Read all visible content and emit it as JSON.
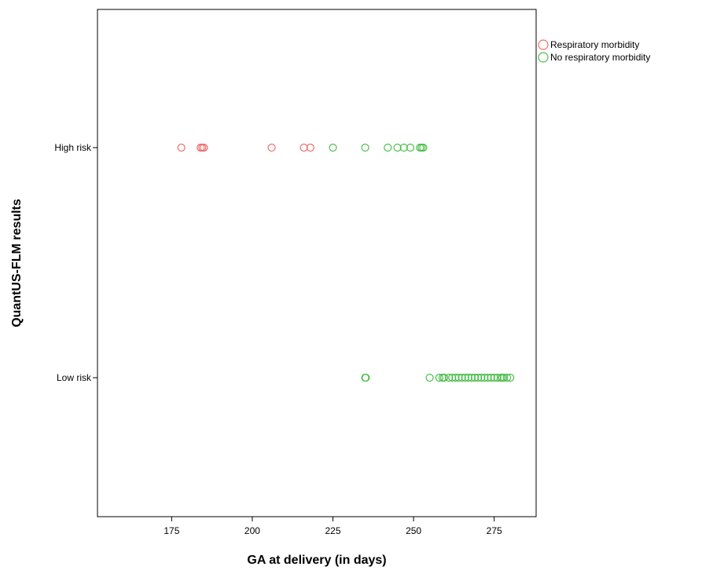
{
  "chart_data": {
    "type": "scatter",
    "title": "",
    "xlabel": "GA at delivery (in days)",
    "ylabel": "QuantUS-FLM results",
    "xlim": [
      152,
      288
    ],
    "x_ticks": [
      175,
      200,
      225,
      250,
      275
    ],
    "categories": [
      "High risk",
      "Low risk"
    ],
    "grid": false,
    "legend_position": "top-right",
    "series": [
      {
        "name": "Respiratory morbidity",
        "color": "#f26b6b",
        "points": [
          {
            "x": 178,
            "y": "High risk"
          },
          {
            "x": 184,
            "y": "High risk"
          },
          {
            "x": 184.5,
            "y": "High risk"
          },
          {
            "x": 185,
            "y": "High risk"
          },
          {
            "x": 206,
            "y": "High risk"
          },
          {
            "x": 216,
            "y": "High risk"
          },
          {
            "x": 218,
            "y": "High risk"
          }
        ]
      },
      {
        "name": "No respiratory morbidity",
        "color": "#4cbf4c",
        "points": [
          {
            "x": 225,
            "y": "High risk"
          },
          {
            "x": 235,
            "y": "High risk"
          },
          {
            "x": 242,
            "y": "High risk"
          },
          {
            "x": 245,
            "y": "High risk"
          },
          {
            "x": 247,
            "y": "High risk"
          },
          {
            "x": 249,
            "y": "High risk"
          },
          {
            "x": 252,
            "y": "High risk"
          },
          {
            "x": 252.5,
            "y": "High risk"
          },
          {
            "x": 253,
            "y": "High risk"
          },
          {
            "x": 235,
            "y": "Low risk"
          },
          {
            "x": 235.2,
            "y": "Low risk"
          },
          {
            "x": 255,
            "y": "Low risk"
          },
          {
            "x": 258,
            "y": "Low risk"
          },
          {
            "x": 259,
            "y": "Low risk"
          },
          {
            "x": 259.5,
            "y": "Low risk"
          },
          {
            "x": 261,
            "y": "Low risk"
          },
          {
            "x": 262,
            "y": "Low risk"
          },
          {
            "x": 263,
            "y": "Low risk"
          },
          {
            "x": 264,
            "y": "Low risk"
          },
          {
            "x": 265,
            "y": "Low risk"
          },
          {
            "x": 266,
            "y": "Low risk"
          },
          {
            "x": 267,
            "y": "Low risk"
          },
          {
            "x": 268,
            "y": "Low risk"
          },
          {
            "x": 269,
            "y": "Low risk"
          },
          {
            "x": 270,
            "y": "Low risk"
          },
          {
            "x": 271,
            "y": "Low risk"
          },
          {
            "x": 272,
            "y": "Low risk"
          },
          {
            "x": 273,
            "y": "Low risk"
          },
          {
            "x": 274,
            "y": "Low risk"
          },
          {
            "x": 275,
            "y": "Low risk"
          },
          {
            "x": 276,
            "y": "Low risk"
          },
          {
            "x": 277,
            "y": "Low risk"
          },
          {
            "x": 277.5,
            "y": "Low risk"
          },
          {
            "x": 278,
            "y": "Low risk"
          },
          {
            "x": 279,
            "y": "Low risk"
          },
          {
            "x": 280,
            "y": "Low risk"
          }
        ]
      }
    ]
  }
}
